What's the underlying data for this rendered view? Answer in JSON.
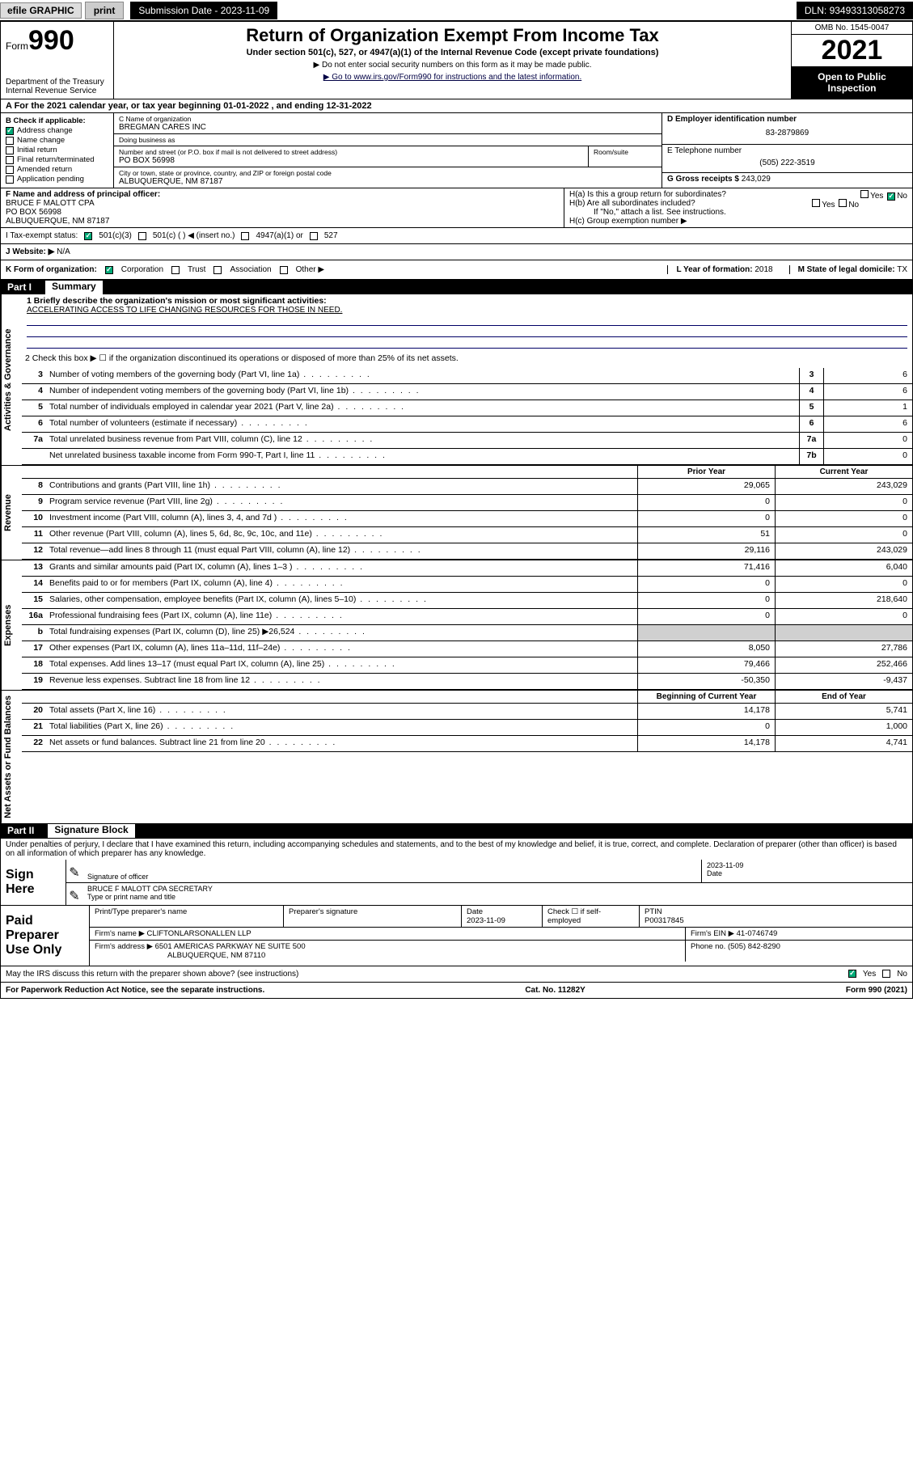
{
  "topbar": {
    "efile": "efile GRAPHIC",
    "print": "print",
    "submission_label": "Submission Date - 2023-11-09",
    "dln": "DLN: 93493313058273"
  },
  "header": {
    "form_prefix": "Form",
    "form_no": "990",
    "title": "Return of Organization Exempt From Income Tax",
    "sub": "Under section 501(c), 527, or 4947(a)(1) of the Internal Revenue Code (except private foundations)",
    "note1": "▶ Do not enter social security numbers on this form as it may be made public.",
    "note2": "▶ Go to www.irs.gov/Form990 for instructions and the latest information.",
    "dept": "Department of the Treasury\nInternal Revenue Service",
    "omb": "OMB No. 1545-0047",
    "year": "2021",
    "open": "Open to Public Inspection"
  },
  "row_a": "A For the 2021 calendar year, or tax year beginning 01-01-2022  , and ending 12-31-2022",
  "col_b": {
    "label": "B Check if applicable:",
    "items": [
      {
        "label": "Address change",
        "checked": true
      },
      {
        "label": "Name change",
        "checked": false
      },
      {
        "label": "Initial return",
        "checked": false
      },
      {
        "label": "Final return/terminated",
        "checked": false
      },
      {
        "label": "Amended return",
        "checked": false
      },
      {
        "label": "Application pending",
        "checked": false
      }
    ]
  },
  "col_c": {
    "name_lbl": "C Name of organization",
    "name": "BREGMAN CARES INC",
    "dba_lbl": "Doing business as",
    "dba": "",
    "street_lbl": "Number and street (or P.O. box if mail is not delivered to street address)",
    "street": "PO BOX 56998",
    "room_lbl": "Room/suite",
    "city_lbl": "City or town, state or province, country, and ZIP or foreign postal code",
    "city": "ALBUQUERQUE, NM  87187"
  },
  "col_d": {
    "ein_lbl": "D Employer identification number",
    "ein": "83-2879869",
    "tel_lbl": "E Telephone number",
    "tel": "(505) 222-3519",
    "gross_lbl": "G Gross receipts $",
    "gross": "243,029"
  },
  "row_f": {
    "lbl": "F Name and address of principal officer:",
    "name": "BRUCE F MALOTT CPA",
    "street": "PO BOX 56998",
    "city": "ALBUQUERQUE, NM  87187"
  },
  "row_h": {
    "a": "H(a)  Is this a group return for subordinates?",
    "a_yes": false,
    "a_no": true,
    "b": "H(b)  Are all subordinates included?",
    "c": "If \"No,\" attach a list. See instructions.",
    "d": "H(c)  Group exemption number ▶"
  },
  "row_i": {
    "lbl": "I   Tax-exempt status:",
    "opts": [
      "501(c)(3)",
      "501(c) (  ) ◀ (insert no.)",
      "4947(a)(1) or",
      "527"
    ],
    "checked": 0
  },
  "row_j": {
    "lbl": "J   Website: ▶",
    "val": "N/A"
  },
  "row_k": {
    "lbl": "K Form of organization:",
    "opts": [
      "Corporation",
      "Trust",
      "Association",
      "Other ▶"
    ],
    "checked": 0,
    "yof_lbl": "L Year of formation:",
    "yof": "2018",
    "dom_lbl": "M State of legal domicile:",
    "dom": "TX"
  },
  "parts": {
    "p1": "Part I",
    "p1_title": "Summary",
    "p2": "Part II",
    "p2_title": "Signature Block"
  },
  "sidelabels": {
    "s1": "Activities & Governance",
    "s2": "Revenue",
    "s3": "Expenses",
    "s4": "Net Assets or Fund Balances"
  },
  "mission": {
    "lbl": "1  Briefly describe the organization's mission or most significant activities:",
    "text": "ACCELERATING ACCESS TO LIFE CHANGING RESOURCES FOR THOSE IN NEED."
  },
  "line2": "2   Check this box ▶ ☐  if the organization discontinued its operations or disposed of more than 25% of its net assets.",
  "gov_lines": [
    {
      "n": "3",
      "d": "Number of voting members of the governing body (Part VI, line 1a)",
      "b": "3",
      "v": "6"
    },
    {
      "n": "4",
      "d": "Number of independent voting members of the governing body (Part VI, line 1b)",
      "b": "4",
      "v": "6"
    },
    {
      "n": "5",
      "d": "Total number of individuals employed in calendar year 2021 (Part V, line 2a)",
      "b": "5",
      "v": "1"
    },
    {
      "n": "6",
      "d": "Total number of volunteers (estimate if necessary)",
      "b": "6",
      "v": "6"
    },
    {
      "n": "7a",
      "d": "Total unrelated business revenue from Part VIII, column (C), line 12",
      "b": "7a",
      "v": "0"
    },
    {
      "n": "",
      "d": "Net unrelated business taxable income from Form 990-T, Part I, line 11",
      "b": "7b",
      "v": "0"
    }
  ],
  "colhdrs": {
    "prior": "Prior Year",
    "current": "Current Year"
  },
  "rev_lines": [
    {
      "n": "8",
      "d": "Contributions and grants (Part VIII, line 1h)",
      "p": "29,065",
      "c": "243,029"
    },
    {
      "n": "9",
      "d": "Program service revenue (Part VIII, line 2g)",
      "p": "0",
      "c": "0"
    },
    {
      "n": "10",
      "d": "Investment income (Part VIII, column (A), lines 3, 4, and 7d )",
      "p": "0",
      "c": "0"
    },
    {
      "n": "11",
      "d": "Other revenue (Part VIII, column (A), lines 5, 6d, 8c, 9c, 10c, and 11e)",
      "p": "51",
      "c": "0"
    },
    {
      "n": "12",
      "d": "Total revenue—add lines 8 through 11 (must equal Part VIII, column (A), line 12)",
      "p": "29,116",
      "c": "243,029"
    }
  ],
  "exp_lines": [
    {
      "n": "13",
      "d": "Grants and similar amounts paid (Part IX, column (A), lines 1–3 )",
      "p": "71,416",
      "c": "6,040"
    },
    {
      "n": "14",
      "d": "Benefits paid to or for members (Part IX, column (A), line 4)",
      "p": "0",
      "c": "0"
    },
    {
      "n": "15",
      "d": "Salaries, other compensation, employee benefits (Part IX, column (A), lines 5–10)",
      "p": "0",
      "c": "218,640"
    },
    {
      "n": "16a",
      "d": "Professional fundraising fees (Part IX, column (A), line 11e)",
      "p": "0",
      "c": "0"
    },
    {
      "n": "b",
      "d": "Total fundraising expenses (Part IX, column (D), line 25) ▶26,524",
      "p": "",
      "c": "",
      "shaded": true
    },
    {
      "n": "17",
      "d": "Other expenses (Part IX, column (A), lines 11a–11d, 11f–24e)",
      "p": "8,050",
      "c": "27,786"
    },
    {
      "n": "18",
      "d": "Total expenses. Add lines 13–17 (must equal Part IX, column (A), line 25)",
      "p": "79,466",
      "c": "252,466"
    },
    {
      "n": "19",
      "d": "Revenue less expenses. Subtract line 18 from line 12",
      "p": "-50,350",
      "c": "-9,437"
    }
  ],
  "na_hdrs": {
    "beg": "Beginning of Current Year",
    "end": "End of Year"
  },
  "na_lines": [
    {
      "n": "20",
      "d": "Total assets (Part X, line 16)",
      "p": "14,178",
      "c": "5,741"
    },
    {
      "n": "21",
      "d": "Total liabilities (Part X, line 26)",
      "p": "0",
      "c": "1,000"
    },
    {
      "n": "22",
      "d": "Net assets or fund balances. Subtract line 21 from line 20",
      "p": "14,178",
      "c": "4,741"
    }
  ],
  "sig": {
    "decl": "Under penalties of perjury, I declare that I have examined this return, including accompanying schedules and statements, and to the best of my knowledge and belief, it is true, correct, and complete. Declaration of preparer (other than officer) is based on all information of which preparer has any knowledge.",
    "sign_here": "Sign Here",
    "sig_of_officer": "Signature of officer",
    "date": "2023-11-09",
    "date_lbl": "Date",
    "name": "BRUCE F MALOTT CPA  SECRETARY",
    "name_lbl": "Type or print name and title"
  },
  "paid": {
    "label": "Paid Preparer Use Only",
    "r1": {
      "c1_lbl": "Print/Type preparer's name",
      "c1": "",
      "c2_lbl": "Preparer's signature",
      "c2": "",
      "c3_lbl": "Date",
      "c3": "2023-11-09",
      "c4_lbl": "Check ☐ if self-employed",
      "c5_lbl": "PTIN",
      "c5": "P00317845"
    },
    "r2": {
      "lbl": "Firm's name    ▶",
      "val": "CLIFTONLARSONALLEN LLP",
      "ein_lbl": "Firm's EIN ▶",
      "ein": "41-0746749"
    },
    "r3": {
      "lbl": "Firm's address ▶",
      "val": "6501 AMERICAS PARKWAY NE SUITE 500",
      "tel_lbl": "Phone no.",
      "tel": "(505) 842-8290"
    },
    "r3b": "ALBUQUERQUE, NM  87110"
  },
  "footer": {
    "q": "May the IRS discuss this return with the preparer shown above? (see instructions)",
    "yes": true,
    "paperwork": "For Paperwork Reduction Act Notice, see the separate instructions.",
    "cat": "Cat. No. 11282Y",
    "form": "Form 990 (2021)"
  }
}
